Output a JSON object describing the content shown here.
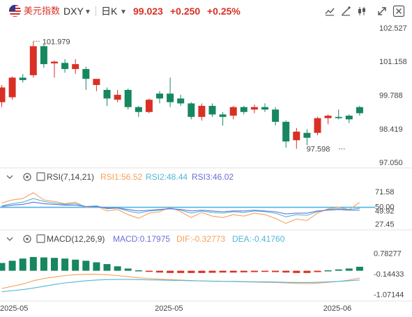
{
  "header": {
    "name": "美元指数",
    "symbol": "DXY",
    "period": "日K",
    "price": "99.023",
    "change": "+0.250",
    "change_pct": "+0.25%"
  },
  "toolbar": {
    "buttons": [
      "indicator-icon",
      "drawing-icon",
      "candle-style-icon",
      "expand-icon",
      "close-icon"
    ]
  },
  "colors": {
    "up": "#d93025",
    "down": "#16875f",
    "rsi1": "#f5a05a",
    "rsi2": "#4fb8d8",
    "rsi3": "#6b6fd6",
    "dif": "#f5a05a",
    "dea": "#4fb8d8",
    "level_line": "#4fb3e8"
  },
  "chart_data": [
    {
      "type": "candlestick",
      "price_ticks": [
        "102.527",
        "101.158",
        "99.788",
        "98.419",
        "97.050"
      ],
      "ylim": [
        97.05,
        102.527
      ],
      "annotations": [
        {
          "text": "101.979",
          "value": 101.979,
          "candle": 3
        },
        {
          "text": "97.598",
          "value": 97.598,
          "candle": 32
        }
      ],
      "x_ticks": [
        {
          "label": "2025-05",
          "candle": 0
        },
        {
          "label": "2025-05",
          "candle": 16
        },
        {
          "label": "2025-06",
          "candle": 32
        }
      ],
      "candles": [
        {
          "open": 99.5,
          "high": 100.2,
          "low": 99.3,
          "close": 100.1
        },
        {
          "open": 99.7,
          "high": 100.55,
          "low": 99.6,
          "close": 100.5
        },
        {
          "open": 100.5,
          "high": 100.65,
          "low": 100.3,
          "close": 100.4
        },
        {
          "open": 100.6,
          "high": 101.97,
          "low": 100.5,
          "close": 101.78
        },
        {
          "open": 101.78,
          "high": 101.85,
          "low": 100.9,
          "close": 101.05
        },
        {
          "open": 101.08,
          "high": 101.2,
          "low": 100.5,
          "close": 101.15
        },
        {
          "open": 101.1,
          "high": 101.25,
          "low": 100.7,
          "close": 100.85
        },
        {
          "open": 100.85,
          "high": 101.25,
          "low": 100.65,
          "close": 101.05
        },
        {
          "open": 100.85,
          "high": 100.95,
          "low": 100.0,
          "close": 100.45
        },
        {
          "open": 100.2,
          "high": 100.4,
          "low": 99.95,
          "close": 100.45
        },
        {
          "open": 100.0,
          "high": 100.1,
          "low": 99.35,
          "close": 99.65
        },
        {
          "open": 99.6,
          "high": 100.0,
          "low": 99.5,
          "close": 99.8
        },
        {
          "open": 100.0,
          "high": 100.05,
          "low": 99.2,
          "close": 99.3
        },
        {
          "open": 99.3,
          "high": 99.35,
          "low": 98.9,
          "close": 99.1
        },
        {
          "open": 99.1,
          "high": 99.65,
          "low": 99.05,
          "close": 99.6
        },
        {
          "open": 99.85,
          "high": 99.95,
          "low": 99.45,
          "close": 99.65
        },
        {
          "open": 99.85,
          "high": 100.5,
          "low": 99.3,
          "close": 99.5
        },
        {
          "open": 99.65,
          "high": 99.8,
          "low": 99.35,
          "close": 99.45
        },
        {
          "open": 99.45,
          "high": 99.5,
          "low": 98.8,
          "close": 98.9
        },
        {
          "open": 98.9,
          "high": 99.45,
          "low": 98.75,
          "close": 99.35
        },
        {
          "open": 99.35,
          "high": 99.45,
          "low": 98.9,
          "close": 99.0
        },
        {
          "open": 99.0,
          "high": 99.1,
          "low": 98.55,
          "close": 98.9
        },
        {
          "open": 98.95,
          "high": 99.35,
          "low": 98.8,
          "close": 99.3
        },
        {
          "open": 99.3,
          "high": 99.35,
          "low": 99.0,
          "close": 99.1
        },
        {
          "open": 99.2,
          "high": 99.4,
          "low": 99.05,
          "close": 99.3
        },
        {
          "open": 99.3,
          "high": 99.45,
          "low": 99.1,
          "close": 99.2
        },
        {
          "open": 99.2,
          "high": 99.3,
          "low": 98.55,
          "close": 98.7
        },
        {
          "open": 98.7,
          "high": 98.75,
          "low": 97.65,
          "close": 97.9
        },
        {
          "open": 97.95,
          "high": 98.45,
          "low": 97.6,
          "close": 98.3
        },
        {
          "open": 98.25,
          "high": 98.4,
          "low": 97.75,
          "close": 98.05
        },
        {
          "open": 98.25,
          "high": 98.9,
          "low": 98.15,
          "close": 98.85
        },
        {
          "open": 98.85,
          "high": 99.0,
          "low": 98.6,
          "close": 98.95
        },
        {
          "open": 98.9,
          "high": 99.2,
          "low": 98.8,
          "close": 98.85
        },
        {
          "open": 98.95,
          "high": 99.0,
          "low": 98.65,
          "close": 98.8
        },
        {
          "open": 99.3,
          "high": 99.35,
          "low": 98.95,
          "close": 99.05
        }
      ]
    },
    {
      "type": "line",
      "indicator": "RSI(7,14,21)",
      "title": "RSI(7,14,21)",
      "legend": [
        "RSI1:56.52",
        "RSI2:48.44",
        "RSI3:46.02"
      ],
      "ticks": [
        "71.58",
        "50.00",
        "49.92",
        "27.45"
      ],
      "ylim": [
        22,
        80
      ],
      "level": 50,
      "series": [
        {
          "name": "RSI1",
          "values": [
            56,
            60,
            62,
            70,
            60,
            58,
            55,
            57,
            50,
            52,
            45,
            47,
            40,
            35,
            42,
            44,
            50,
            44,
            36,
            43,
            38,
            36,
            40,
            38,
            42,
            40,
            35,
            28,
            34,
            32,
            42,
            48,
            50,
            47,
            56.52
          ]
        },
        {
          "name": "RSI2",
          "values": [
            52,
            55,
            57,
            62,
            58,
            56,
            54,
            55,
            51,
            52,
            48,
            49,
            45,
            42,
            45,
            46,
            49,
            46,
            42,
            45,
            43,
            42,
            44,
            43,
            45,
            44,
            42,
            37,
            40,
            39,
            44,
            47,
            48,
            47,
            48.44
          ]
        },
        {
          "name": "RSI3",
          "values": [
            51,
            53,
            54,
            57,
            55,
            54,
            53,
            53,
            51,
            51,
            49,
            49,
            47,
            45,
            46,
            47,
            48,
            47,
            45,
            46,
            45,
            44,
            45,
            45,
            46,
            45,
            44,
            41,
            42,
            42,
            45,
            46,
            47,
            46,
            46.02
          ]
        }
      ]
    },
    {
      "type": "bar-line",
      "indicator": "MACD(12,26,9)",
      "title": "MACD(12,26,9)",
      "legend": [
        "MACD:0.17975",
        "DIF:-0.32773",
        "DEA:-0.41760"
      ],
      "ticks": [
        "0.78277",
        "-0.14433",
        "-1.07144"
      ],
      "ylim": [
        -1.3,
        1.15
      ],
      "macd": [
        0.35,
        0.45,
        0.55,
        0.62,
        0.6,
        0.58,
        0.55,
        0.5,
        0.45,
        0.38,
        0.3,
        0.2,
        0.1,
        0.02,
        -0.05,
        -0.08,
        -0.1,
        -0.1,
        -0.1,
        -0.1,
        -0.09,
        -0.08,
        -0.08,
        -0.07,
        -0.06,
        -0.05,
        -0.06,
        -0.08,
        -0.1,
        -0.1,
        -0.06,
        0.02,
        0.06,
        0.1,
        0.17975
      ],
      "dif": [
        -0.8,
        -0.7,
        -0.6,
        -0.45,
        -0.35,
        -0.28,
        -0.22,
        -0.18,
        -0.16,
        -0.16,
        -0.18,
        -0.22,
        -0.27,
        -0.32,
        -0.35,
        -0.38,
        -0.4,
        -0.42,
        -0.44,
        -0.46,
        -0.47,
        -0.48,
        -0.49,
        -0.5,
        -0.51,
        -0.52,
        -0.53,
        -0.55,
        -0.57,
        -0.58,
        -0.56,
        -0.52,
        -0.48,
        -0.42,
        -0.32773
      ],
      "dea": [
        -0.95,
        -0.9,
        -0.85,
        -0.78,
        -0.7,
        -0.62,
        -0.55,
        -0.5,
        -0.45,
        -0.42,
        -0.4,
        -0.39,
        -0.39,
        -0.4,
        -0.41,
        -0.42,
        -0.43,
        -0.44,
        -0.45,
        -0.46,
        -0.47,
        -0.48,
        -0.48,
        -0.49,
        -0.5,
        -0.5,
        -0.51,
        -0.52,
        -0.53,
        -0.53,
        -0.52,
        -0.5,
        -0.48,
        -0.45,
        -0.4176
      ]
    }
  ]
}
